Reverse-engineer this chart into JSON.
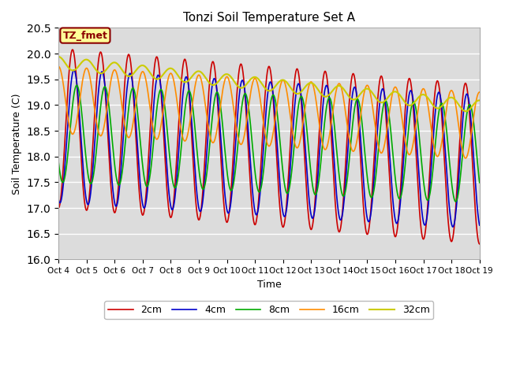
{
  "title": "Tonzi Soil Temperature Set A",
  "ylabel": "Soil Temperature (C)",
  "xlabel": "Time",
  "ylim": [
    16.0,
    20.5
  ],
  "annotation_text": "TZ_fmet",
  "annotation_bg": "#FFFF99",
  "annotation_border": "#8B0000",
  "annotation_text_color": "#8B0000",
  "bg_color": "#DCDCDC",
  "fig_bg_color": "#FFFFFF",
  "line_colors": {
    "2cm": "#CC0000",
    "4cm": "#0000CC",
    "8cm": "#00AA00",
    "16cm": "#FF8C00",
    "32cm": "#CCCC00"
  },
  "line_widths": {
    "2cm": 1.2,
    "4cm": 1.2,
    "8cm": 1.2,
    "16cm": 1.2,
    "32cm": 1.5
  },
  "legend_entries": [
    "2cm",
    "4cm",
    "8cm",
    "16cm",
    "32cm"
  ],
  "x_tick_labels": [
    "Oct 4",
    "Oct 5",
    "Oct 6",
    "Oct 7",
    "Oct 8",
    "Oct 9",
    "Oct 10",
    "Oct 11",
    "Oct 12",
    "Oct 13",
    "Oct 14",
    "Oct 15",
    "Oct 16",
    "Oct 17",
    "Oct 18",
    "Oct 19"
  ],
  "yticks": [
    16.0,
    16.5,
    17.0,
    17.5,
    18.0,
    18.5,
    19.0,
    19.5,
    20.0,
    20.5
  ]
}
